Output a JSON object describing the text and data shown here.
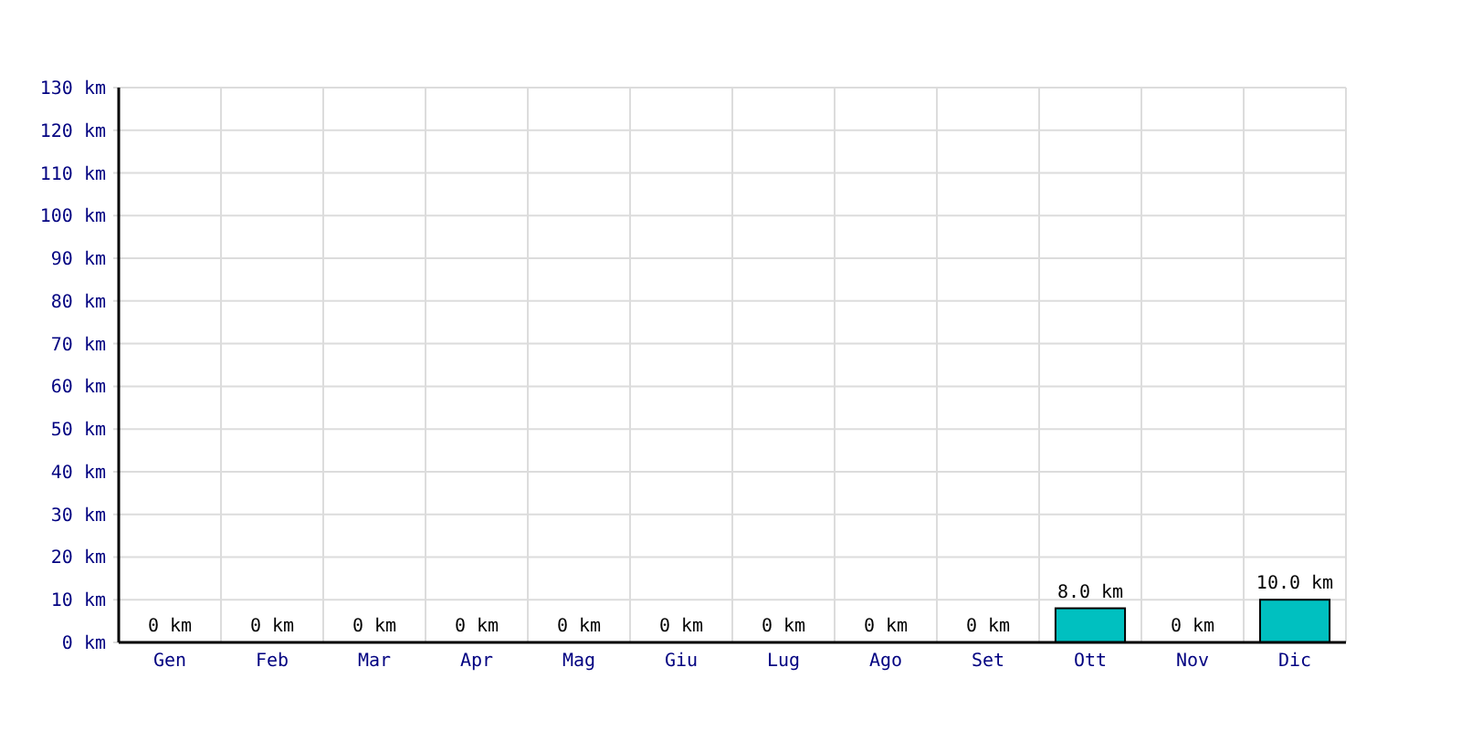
{
  "chart_data": {
    "type": "bar",
    "categories": [
      "Gen",
      "Feb",
      "Mar",
      "Apr",
      "Mag",
      "Giu",
      "Lug",
      "Ago",
      "Set",
      "Ott",
      "Nov",
      "Dic"
    ],
    "values": [
      0,
      0,
      0,
      0,
      0,
      0,
      0,
      0,
      0,
      8,
      0,
      10
    ],
    "color": "#00c0c0",
    "ylim": [
      0,
      130
    ],
    "yticks": [
      {
        "value": 0,
        "label": "0 km"
      },
      {
        "value": 10,
        "label": "10 km"
      },
      {
        "value": 20,
        "label": "20 km"
      },
      {
        "value": 30,
        "label": "30 km"
      },
      {
        "value": 40,
        "label": "40 km"
      },
      {
        "value": 50,
        "label": "50 km"
      },
      {
        "value": 60,
        "label": "60 km"
      },
      {
        "value": 70,
        "label": "70 km"
      },
      {
        "value": 80,
        "label": "80 km"
      },
      {
        "value": 90,
        "label": "90 km"
      },
      {
        "value": 100,
        "label": "100 km"
      },
      {
        "value": 110,
        "label": "110 km"
      },
      {
        "value": 120,
        "label": "120 km"
      },
      {
        "value": 130,
        "label": "130 km"
      }
    ],
    "grid": true,
    "value_labels": [
      "0 km",
      "0 km",
      "0 km",
      "0 km",
      "0 km",
      "0 km",
      "0 km",
      "0 km",
      "0 km",
      "8.0 km",
      "0 km",
      "10.0 km"
    ]
  }
}
